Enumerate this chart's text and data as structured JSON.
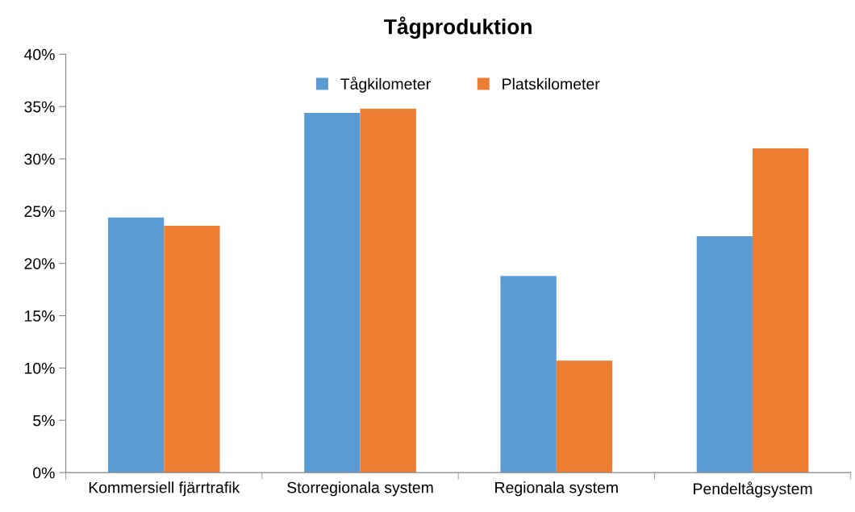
{
  "chart_data": {
    "type": "bar",
    "title": "Tågproduktion",
    "categories": [
      "Kommersiell fjärrtrafik",
      "Storregionala system",
      "Regionala system",
      "Pendeltågsystem"
    ],
    "series": [
      {
        "name": "Tågkilometer",
        "color": "#5b9bd5",
        "values": [
          24.4,
          34.4,
          18.8,
          22.6
        ]
      },
      {
        "name": "Platskilometer",
        "color": "#ed7d31",
        "values": [
          23.6,
          34.8,
          10.7,
          31.0
        ]
      }
    ],
    "ylim": [
      0,
      40
    ],
    "yticks": [
      {
        "value": 0,
        "label": "0%"
      },
      {
        "value": 5,
        "label": "5%"
      },
      {
        "value": 10,
        "label": "10%"
      },
      {
        "value": 15,
        "label": "15%"
      },
      {
        "value": 20,
        "label": "20%"
      },
      {
        "value": 25,
        "label": "25%"
      },
      {
        "value": 30,
        "label": "30%"
      },
      {
        "value": 35,
        "label": "35%"
      },
      {
        "value": 40,
        "label": "40%"
      }
    ],
    "grid": false,
    "legend": "top"
  }
}
